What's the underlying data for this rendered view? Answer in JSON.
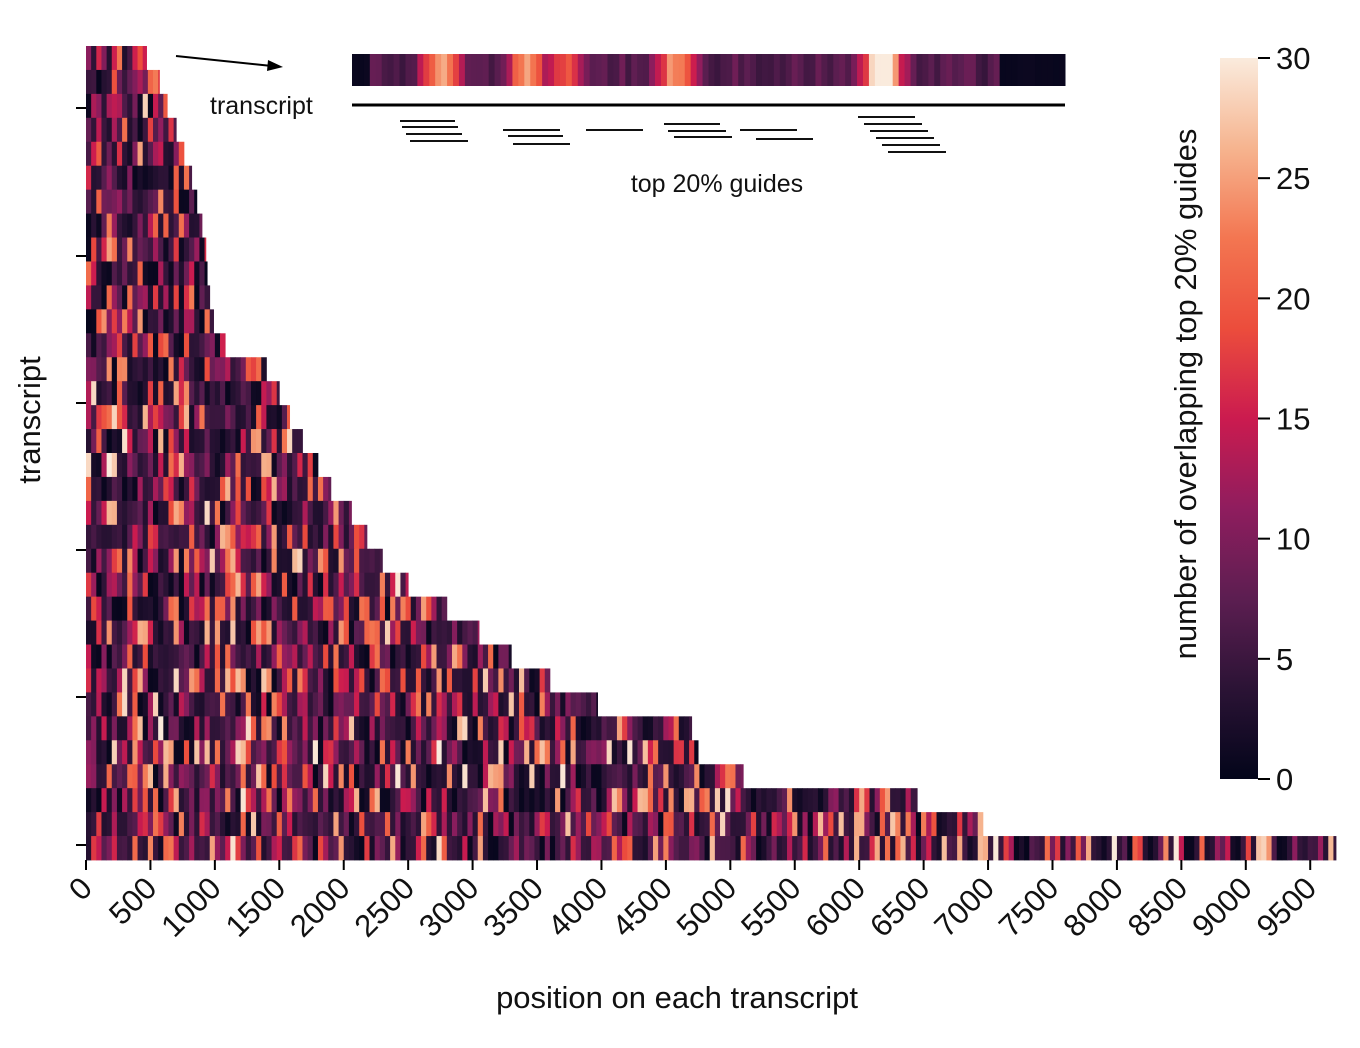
{
  "chart_data": {
    "type": "heatmap",
    "title": "",
    "xlabel": "position on each transcript",
    "ylabel": "transcript",
    "x_ticks": [
      0,
      500,
      1000,
      1500,
      2000,
      2500,
      3000,
      3500,
      4000,
      4500,
      5000,
      5500,
      6000,
      6500,
      7000,
      7500,
      8000,
      8500,
      9000,
      9500
    ],
    "xlim": [
      0,
      9700
    ],
    "y_ticks": [
      "",
      "",
      "",
      "",
      "",
      ""
    ],
    "colorbar": {
      "label": "number of overlapping top 20% guides",
      "ticks": [
        0,
        5,
        10,
        15,
        20,
        25,
        30
      ],
      "range": [
        0,
        30
      ],
      "colormap": "rocket",
      "colors": [
        "#03051a",
        "#2b1335",
        "#5c1e51",
        "#8f1d5e",
        "#cb1b4f",
        "#ec4d3c",
        "#f37651",
        "#f6b48f",
        "#faebdd"
      ]
    },
    "transcript_lengths": [
      470,
      570,
      630,
      700,
      760,
      820,
      860,
      900,
      930,
      940,
      960,
      990,
      1080,
      1400,
      1500,
      1580,
      1680,
      1800,
      1900,
      2060,
      2180,
      2300,
      2500,
      2800,
      3050,
      3300,
      3600,
      3970,
      4700,
      4750,
      5100,
      6450,
      6960,
      9700
    ],
    "inset": {
      "transcript_label": "transcript",
      "guides_label": "top 20% guides"
    }
  }
}
